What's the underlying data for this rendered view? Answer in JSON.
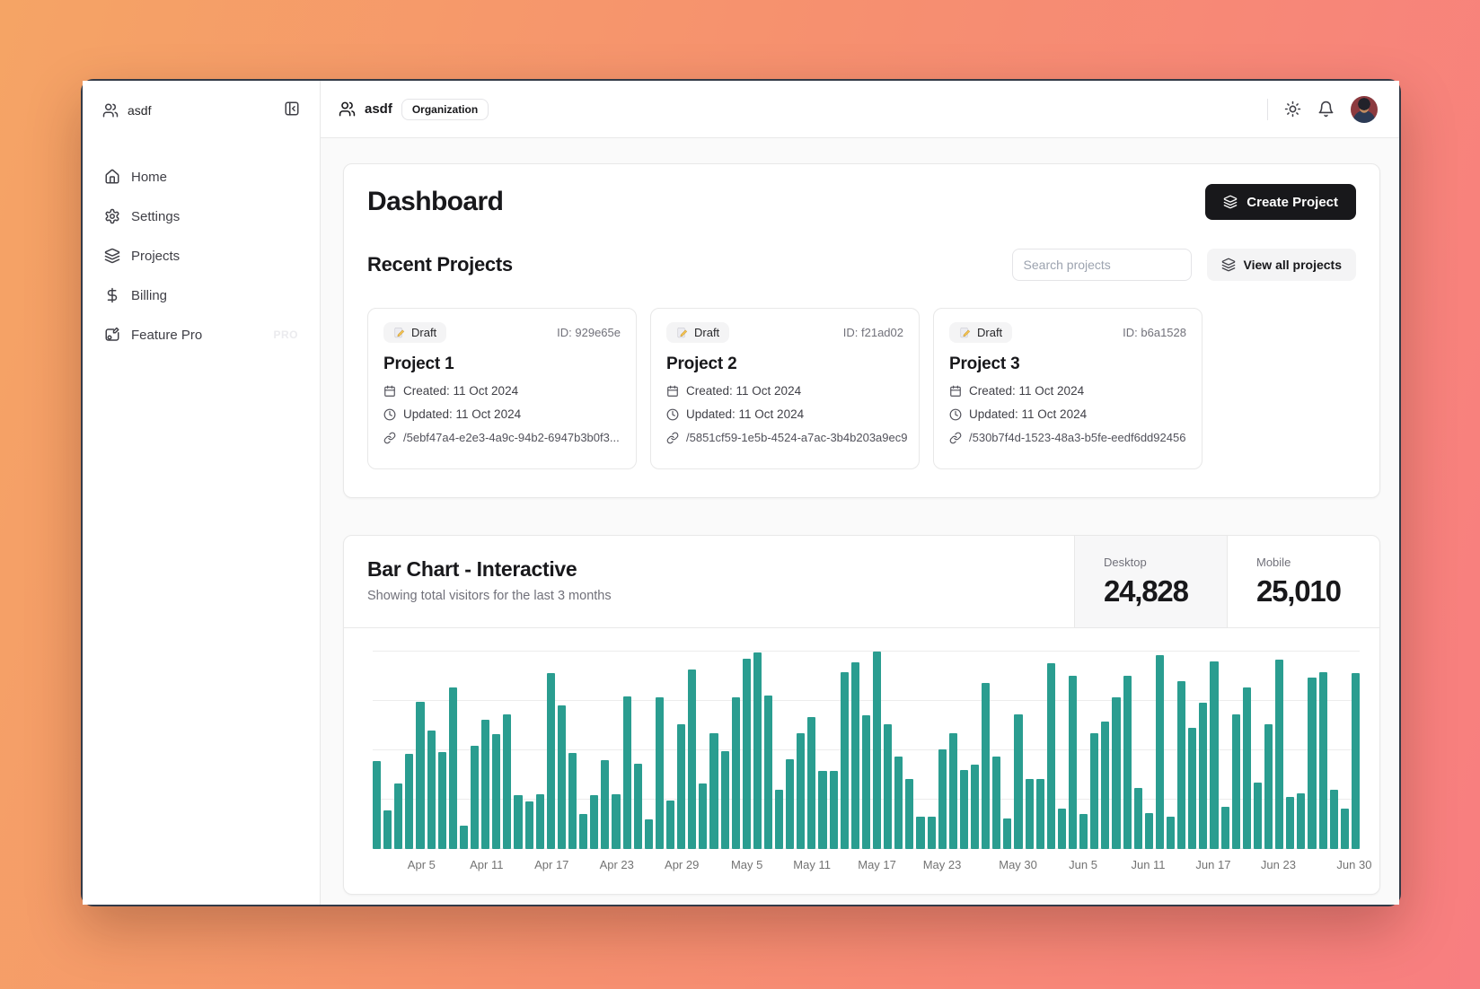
{
  "sidebar": {
    "team_name": "asdf",
    "items": [
      {
        "label": "Home"
      },
      {
        "label": "Settings"
      },
      {
        "label": "Projects"
      },
      {
        "label": "Billing"
      },
      {
        "label": "Feature Pro",
        "badge": "PRO"
      }
    ]
  },
  "header": {
    "org_name": "asdf",
    "org_badge": "Organization"
  },
  "dashboard": {
    "title": "Dashboard",
    "create_button": "Create Project",
    "section_title": "Recent Projects",
    "search_placeholder": "Search projects",
    "view_all_button": "View all projects",
    "projects": [
      {
        "status": "Draft",
        "id_label": "ID: 929e65e",
        "name": "Project 1",
        "created": "Created: 11 Oct 2024",
        "updated": "Updated: 11 Oct 2024",
        "path": "/5ebf47a4-e2e3-4a9c-94b2-6947b3b0f3..."
      },
      {
        "status": "Draft",
        "id_label": "ID: f21ad02",
        "name": "Project 2",
        "created": "Created: 11 Oct 2024",
        "updated": "Updated: 11 Oct 2024",
        "path": "/5851cf59-1e5b-4524-a7ac-3b4b203a9ec9"
      },
      {
        "status": "Draft",
        "id_label": "ID: b6a1528",
        "name": "Project 3",
        "created": "Created: 11 Oct 2024",
        "updated": "Updated: 11 Oct 2024",
        "path": "/530b7f4d-1523-48a3-b5fe-eedf6dd92456"
      }
    ]
  },
  "chart_card": {
    "title": "Bar Chart - Interactive",
    "subtitle": "Showing total visitors for the last 3 months",
    "stats": [
      {
        "label": "Desktop",
        "value": "24,828",
        "active": true
      },
      {
        "label": "Mobile",
        "value": "25,010",
        "active": false
      }
    ]
  },
  "chart_data": {
    "type": "bar",
    "title": "Bar Chart - Interactive",
    "subtitle": "Showing total visitors for the last 3 months",
    "active_series": "desktop",
    "totals": {
      "desktop": 24828,
      "mobile": 25010
    },
    "bar_color": "#2a9d90",
    "ylim": [
      0,
      500
    ],
    "gridline_values": [
      0,
      125,
      250,
      375,
      500
    ],
    "grid": "horizontal",
    "x": [
      "2024-04-01",
      "2024-04-02",
      "2024-04-03",
      "2024-04-04",
      "2024-04-05",
      "2024-04-06",
      "2024-04-07",
      "2024-04-08",
      "2024-04-09",
      "2024-04-10",
      "2024-04-11",
      "2024-04-12",
      "2024-04-13",
      "2024-04-14",
      "2024-04-15",
      "2024-04-16",
      "2024-04-17",
      "2024-04-18",
      "2024-04-19",
      "2024-04-20",
      "2024-04-21",
      "2024-04-22",
      "2024-04-23",
      "2024-04-24",
      "2024-04-25",
      "2024-04-26",
      "2024-04-27",
      "2024-04-28",
      "2024-04-29",
      "2024-04-30",
      "2024-05-01",
      "2024-05-02",
      "2024-05-03",
      "2024-05-04",
      "2024-05-05",
      "2024-05-06",
      "2024-05-07",
      "2024-05-08",
      "2024-05-09",
      "2024-05-10",
      "2024-05-11",
      "2024-05-12",
      "2024-05-13",
      "2024-05-14",
      "2024-05-15",
      "2024-05-16",
      "2024-05-17",
      "2024-05-18",
      "2024-05-19",
      "2024-05-20",
      "2024-05-21",
      "2024-05-22",
      "2024-05-23",
      "2024-05-24",
      "2024-05-25",
      "2024-05-26",
      "2024-05-27",
      "2024-05-28",
      "2024-05-29",
      "2024-05-30",
      "2024-05-31",
      "2024-06-01",
      "2024-06-02",
      "2024-06-03",
      "2024-06-04",
      "2024-06-05",
      "2024-06-06",
      "2024-06-07",
      "2024-06-08",
      "2024-06-09",
      "2024-06-10",
      "2024-06-11",
      "2024-06-12",
      "2024-06-13",
      "2024-06-14",
      "2024-06-15",
      "2024-06-16",
      "2024-06-17",
      "2024-06-18",
      "2024-06-19",
      "2024-06-20",
      "2024-06-21",
      "2024-06-22",
      "2024-06-23",
      "2024-06-24",
      "2024-06-25",
      "2024-06-26",
      "2024-06-27",
      "2024-06-28",
      "2024-06-29",
      "2024-06-30"
    ],
    "values": [
      222,
      97,
      167,
      242,
      373,
      301,
      245,
      409,
      59,
      261,
      327,
      292,
      342,
      137,
      120,
      138,
      446,
      364,
      243,
      89,
      137,
      224,
      138,
      387,
      215,
      75,
      383,
      122,
      315,
      454,
      165,
      293,
      247,
      385,
      481,
      498,
      388,
      149,
      227,
      293,
      335,
      197,
      197,
      448,
      473,
      338,
      499,
      315,
      235,
      177,
      82,
      81,
      252,
      294,
      201,
      213,
      420,
      233,
      78,
      340,
      178,
      178,
      470,
      103,
      439,
      88,
      294,
      323,
      385,
      438,
      155,
      92,
      492,
      81,
      426,
      307,
      371,
      475,
      107,
      341,
      408,
      169,
      317,
      480,
      132,
      141,
      434,
      448,
      149,
      103,
      446
    ],
    "x_ticks": [
      {
        "index": 4,
        "label": "Apr 5"
      },
      {
        "index": 10,
        "label": "Apr 11"
      },
      {
        "index": 16,
        "label": "Apr 17"
      },
      {
        "index": 22,
        "label": "Apr 23"
      },
      {
        "index": 28,
        "label": "Apr 29"
      },
      {
        "index": 34,
        "label": "May 5"
      },
      {
        "index": 40,
        "label": "May 11"
      },
      {
        "index": 46,
        "label": "May 17"
      },
      {
        "index": 52,
        "label": "May 23"
      },
      {
        "index": 59,
        "label": "May 30"
      },
      {
        "index": 65,
        "label": "Jun 5"
      },
      {
        "index": 71,
        "label": "Jun 11"
      },
      {
        "index": 77,
        "label": "Jun 17"
      },
      {
        "index": 83,
        "label": "Jun 23"
      },
      {
        "index": 90,
        "label": "Jun 30"
      }
    ]
  },
  "colors": {
    "accent_teal": "#2a9d90",
    "content_bg": "#fafafa",
    "border": "#e8e8e8",
    "dark_button": "#18181b",
    "gradient_start": "#f5a465",
    "gradient_end": "#f87e80"
  }
}
